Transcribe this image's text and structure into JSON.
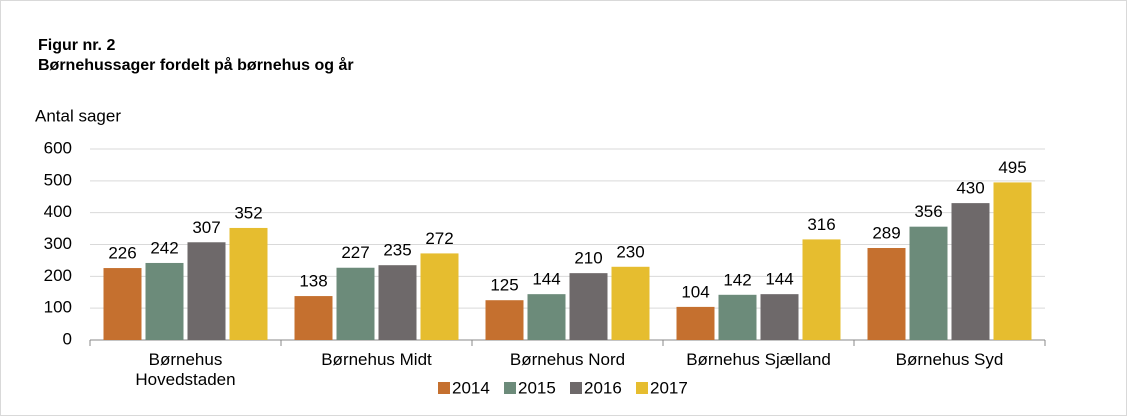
{
  "chart_data": {
    "type": "bar",
    "title": "Figur nr. 2",
    "subtitle": "Børnehussager fordelt på børnehus og år",
    "y_label": "Antal sager",
    "categories": [
      "Børnehus\nHovedstaden",
      "Børnehus Midt",
      "Børnehus Nord",
      "Børnehus Sjælland",
      "Børnehus Syd"
    ],
    "series": [
      {
        "name": "2014",
        "color": "#c5702f",
        "values": [
          226,
          138,
          125,
          104,
          289
        ]
      },
      {
        "name": "2015",
        "color": "#6c8b7a",
        "values": [
          242,
          227,
          144,
          142,
          356
        ]
      },
      {
        "name": "2016",
        "color": "#6e696a",
        "values": [
          307,
          235,
          210,
          144,
          430
        ]
      },
      {
        "name": "2017",
        "color": "#e6bd2f",
        "values": [
          352,
          272,
          230,
          316,
          495
        ]
      }
    ],
    "ylim": [
      0,
      600
    ],
    "yticks": [
      0,
      100,
      200,
      300,
      400,
      500,
      600
    ],
    "grid": true,
    "legend": "bottom"
  }
}
